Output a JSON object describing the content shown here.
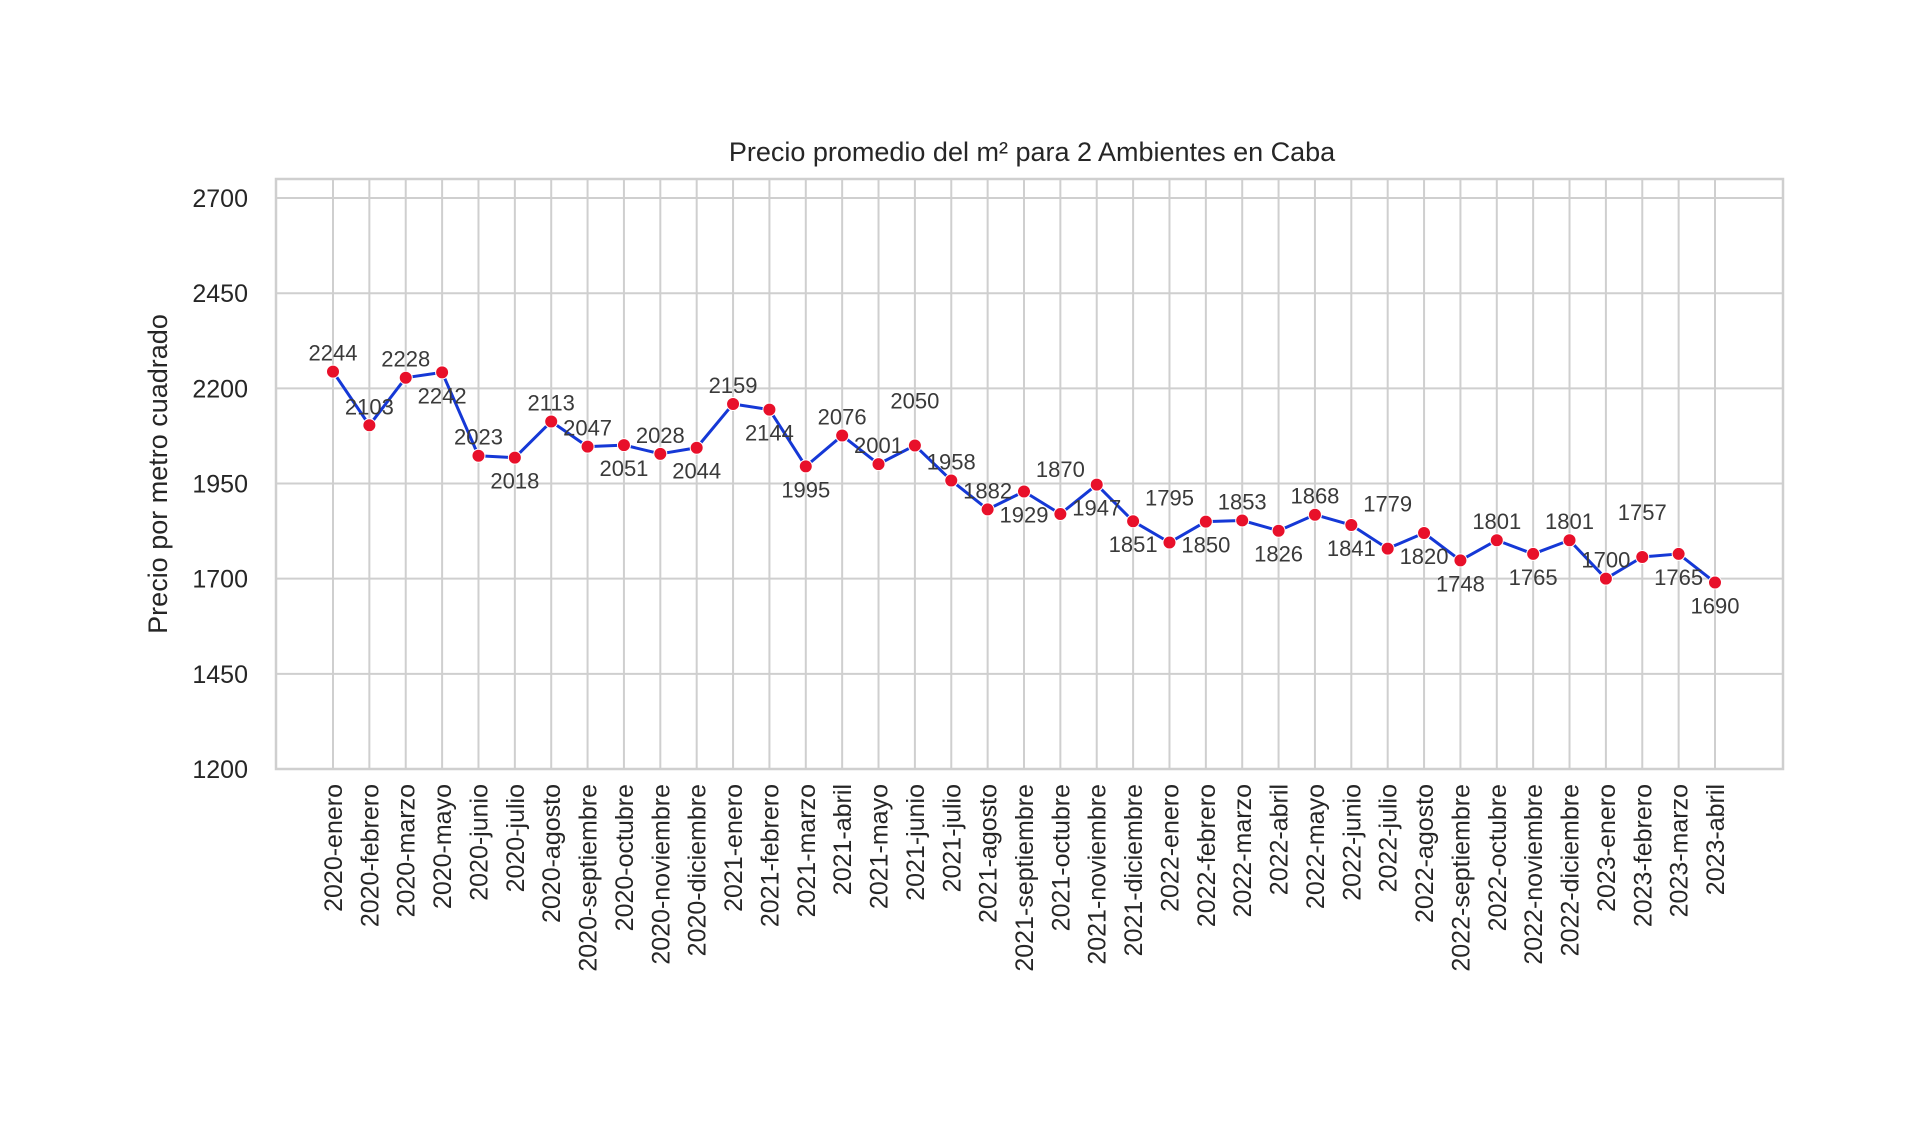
{
  "chart_data": {
    "type": "line",
    "title": "Precio promedio del m² para 2 Ambientes en Caba",
    "xlabel": "",
    "ylabel": "Precio por metro cuadrado",
    "ylim": [
      1200,
      2750
    ],
    "yticks": [
      1200,
      1450,
      1700,
      1950,
      2200,
      2450,
      2700
    ],
    "grid": true,
    "x_tick_rotation_deg": 60,
    "colors": {
      "line": "#1538d6",
      "marker": "#e8102a",
      "grid": "#cfcfcf"
    },
    "categories": [
      "2020-enero",
      "2020-febrero",
      "2020-marzo",
      "2020-mayo",
      "2020-junio",
      "2020-julio",
      "2020-agosto",
      "2020-septiembre",
      "2020-octubre",
      "2020-noviembre",
      "2020-diciembre",
      "2021-enero",
      "2021-febrero",
      "2021-marzo",
      "2021-abril",
      "2021-mayo",
      "2021-junio",
      "2021-julio",
      "2021-agosto",
      "2021-septiembre",
      "2021-octubre",
      "2021-noviembre",
      "2021-diciembre",
      "2022-enero",
      "2022-febrero",
      "2022-marzo",
      "2022-abril",
      "2022-mayo",
      "2022-junio",
      "2022-julio",
      "2022-agosto",
      "2022-septiembre",
      "2022-octubre",
      "2022-noviembre",
      "2022-diciembre",
      "2023-enero",
      "2023-febrero",
      "2023-marzo",
      "2023-abril"
    ],
    "values": [
      2244,
      2103,
      2228,
      2242,
      2023,
      2018,
      2113,
      2047,
      2051,
      2028,
      2044,
      2159,
      2144,
      1995,
      2076,
      2001,
      2050,
      1958,
      1882,
      1929,
      1870,
      1947,
      1851,
      1795,
      1850,
      1853,
      1826,
      1868,
      1841,
      1779,
      1820,
      1748,
      1801,
      1765,
      1801,
      1700,
      1757,
      1765,
      1690
    ]
  }
}
